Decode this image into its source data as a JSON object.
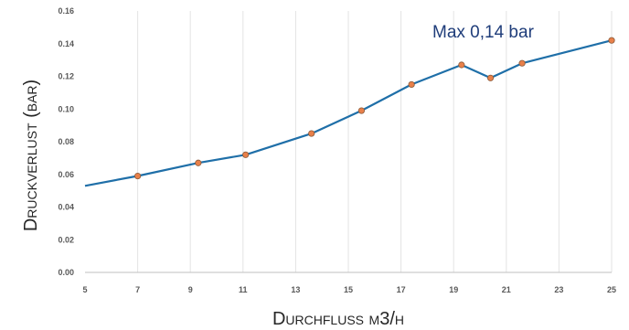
{
  "chart_data": {
    "type": "line",
    "title": "",
    "xlabel": "Durchfluss m3/h",
    "ylabel": "Druckverlust (bar)",
    "xlim": [
      5,
      25
    ],
    "ylim": [
      0,
      0.16
    ],
    "x_ticks": [
      "5",
      "7",
      "9",
      "11",
      "13",
      "15",
      "17",
      "19",
      "21",
      "23",
      "25"
    ],
    "y_ticks": [
      "0.00",
      "0.02",
      "0.04",
      "0.06",
      "0.08",
      "0.10",
      "0.12",
      "0.14",
      "0.16"
    ],
    "grid": "vertical",
    "annotation": "Max 0,14 bar",
    "line_color": "#1f6fa8",
    "marker_color": "#e8804a",
    "series": [
      {
        "x": [
          5.0,
          7.0,
          9.3,
          11.1,
          13.6,
          15.5,
          17.4,
          19.3,
          20.4,
          21.6,
          25.0
        ],
        "y": [
          0.053,
          0.059,
          0.067,
          0.072,
          0.085,
          0.099,
          0.115,
          0.127,
          0.119,
          0.128,
          0.142
        ],
        "markers": [
          false,
          true,
          true,
          true,
          true,
          true,
          true,
          true,
          true,
          true,
          true
        ]
      }
    ]
  }
}
